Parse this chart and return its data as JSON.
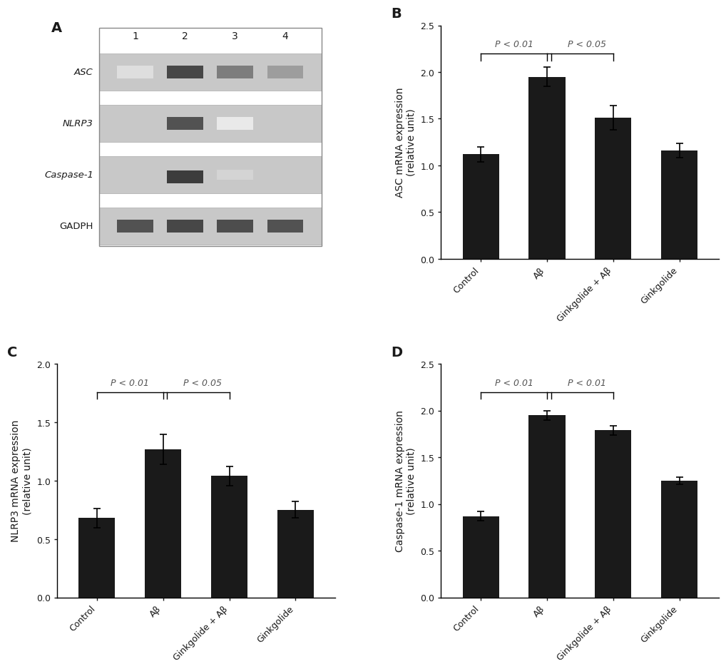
{
  "panel_B": {
    "categories": [
      "Control",
      "Aβ",
      "Ginkgolide + Aβ",
      "Ginkgolide"
    ],
    "values": [
      1.12,
      1.95,
      1.51,
      1.16
    ],
    "errors": [
      0.08,
      0.1,
      0.13,
      0.08
    ],
    "ylabel": "ASC mRNA expression\n(relative unit)",
    "ylim": [
      0,
      2.5
    ],
    "yticks": [
      0.0,
      0.5,
      1.0,
      1.5,
      2.0,
      2.5
    ],
    "sig1_label": "P < 0.01",
    "sig2_label": "P < 0.05",
    "panel_label": "B"
  },
  "panel_C": {
    "categories": [
      "Control",
      "Aβ",
      "Ginkgolide + Aβ",
      "Ginkgolide"
    ],
    "values": [
      0.68,
      1.27,
      1.04,
      0.75
    ],
    "errors": [
      0.08,
      0.13,
      0.08,
      0.07
    ],
    "ylabel": "NLRP3 mRNA expression\n(relative unit)",
    "ylim": [
      0,
      2.0
    ],
    "yticks": [
      0.0,
      0.5,
      1.0,
      1.5,
      2.0
    ],
    "sig1_label": "P < 0.01",
    "sig2_label": "P < 0.05",
    "panel_label": "C"
  },
  "panel_D": {
    "categories": [
      "Control",
      "Aβ",
      "Ginkgolide + Aβ",
      "Ginkgolide"
    ],
    "values": [
      0.87,
      1.95,
      1.79,
      1.25
    ],
    "errors": [
      0.05,
      0.05,
      0.05,
      0.04
    ],
    "ylabel": "Caspase-1 mRNA expression\n(relative unit)",
    "ylim": [
      0,
      2.5
    ],
    "yticks": [
      0.0,
      0.5,
      1.0,
      1.5,
      2.0,
      2.5
    ],
    "sig1_label": "P < 0.01",
    "sig2_label": "P < 0.01",
    "panel_label": "D"
  },
  "bar_color": "#1a1a1a",
  "bar_width": 0.55,
  "background_color": "#ffffff",
  "font_color": "#1a1a1a",
  "sig_font_size": 9,
  "axis_font_size": 10,
  "tick_font_size": 9,
  "panel_label_font_size": 14
}
